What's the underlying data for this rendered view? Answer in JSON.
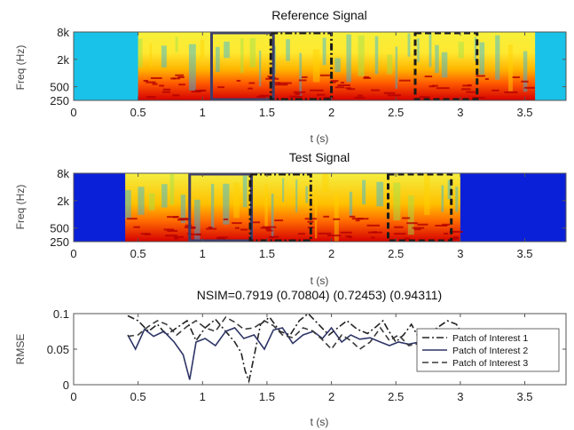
{
  "chart_data": [
    {
      "type": "heatmap",
      "title": "Reference Signal",
      "xlabel": "t (s)",
      "ylabel": "Freq (Hz)",
      "xlim": [
        0,
        3.82
      ],
      "xticks": [
        0,
        0.5,
        1,
        1.5,
        2,
        2.5,
        3,
        3.5
      ],
      "xtick_labels": [
        "0",
        "0.5",
        "1",
        "1.5",
        "2",
        "2.5",
        "3",
        "3.5"
      ],
      "yticks": [
        8000,
        2000,
        500,
        250
      ],
      "ytick_labels": [
        "8k",
        "2k",
        "500",
        "250"
      ],
      "yscale": "log",
      "ylim": [
        250,
        8000
      ],
      "colormap": "jet",
      "speech_segments": [
        [
          0.5,
          3.58
        ]
      ],
      "silence_color": "#19c2e8",
      "patches": [
        {
          "patch": 2,
          "t0": 1.07,
          "t1": 1.55,
          "style": "solid"
        },
        {
          "patch": 1,
          "t0": 1.53,
          "t1": 2.0,
          "style": "dash-dot"
        },
        {
          "patch": 3,
          "t0": 2.65,
          "t1": 3.13,
          "style": "dashed"
        }
      ]
    },
    {
      "type": "heatmap",
      "title": "Test Signal",
      "xlabel": "t (s)",
      "ylabel": "Freq (Hz)",
      "xlim": [
        0,
        3.82
      ],
      "xticks": [
        0,
        0.5,
        1,
        1.5,
        2,
        2.5,
        3,
        3.5
      ],
      "xtick_labels": [
        "0",
        "0.5",
        "1",
        "1.5",
        "2",
        "2.5",
        "3",
        "3.5"
      ],
      "yticks": [
        8000,
        2000,
        500,
        250
      ],
      "ytick_labels": [
        "8k",
        "2k",
        "500",
        "250"
      ],
      "yscale": "log",
      "ylim": [
        250,
        8000
      ],
      "colormap": "jet",
      "speech_segments": [
        [
          0.4,
          3.0
        ]
      ],
      "silence_color": "#0a20d8",
      "patches": [
        {
          "patch": 2,
          "t0": 0.9,
          "t1": 1.38,
          "style": "solid"
        },
        {
          "patch": 1,
          "t0": 1.37,
          "t1": 1.84,
          "style": "dash-dot"
        },
        {
          "patch": 3,
          "t0": 2.44,
          "t1": 2.93,
          "style": "dashed"
        }
      ]
    },
    {
      "type": "line",
      "title": "NSIM=0.7919 (0.70804) (0.72453) (0.94311)",
      "xlabel": "t (s)",
      "ylabel": "RMSE",
      "xlim": [
        0,
        3.82
      ],
      "ylim": [
        0,
        0.1
      ],
      "xticks": [
        0,
        0.5,
        1,
        1.5,
        2,
        2.5,
        3,
        3.5
      ],
      "xtick_labels": [
        "0",
        "0.5",
        "1",
        "1.5",
        "2",
        "2.5",
        "3",
        "3.5"
      ],
      "yticks": [
        0,
        0.05,
        0.1
      ],
      "ytick_labels": [
        "0",
        "0.05",
        "0.1"
      ],
      "legend": "right",
      "series": [
        {
          "name": "Patch of Interest 1",
          "style": "dash-dot",
          "color": "#222222",
          "x": [
            0.42,
            0.5,
            0.58,
            0.65,
            0.72,
            0.8,
            0.88,
            0.95,
            1.02,
            1.1,
            1.18,
            1.25,
            1.3,
            1.33,
            1.36,
            1.4,
            1.45,
            1.52,
            1.6,
            1.68,
            1.75,
            1.82,
            1.9,
            1.98,
            2.05,
            2.12,
            2.2,
            2.28,
            2.35,
            2.4,
            2.44,
            2.5,
            2.56,
            2.62,
            2.68,
            2.75,
            2.82,
            2.9,
            2.97,
            3.05,
            3.12,
            3.2,
            3.27,
            3.35,
            3.42,
            3.5,
            3.55
          ],
          "y": [
            0.097,
            0.09,
            0.075,
            0.085,
            0.07,
            0.08,
            0.09,
            0.062,
            0.08,
            0.092,
            0.075,
            0.06,
            0.045,
            0.02,
            0.005,
            0.04,
            0.085,
            0.095,
            0.075,
            0.07,
            0.09,
            0.1,
            0.085,
            0.07,
            0.08,
            0.09,
            0.078,
            0.072,
            0.082,
            0.09,
            0.077,
            0.06,
            0.07,
            0.085,
            0.065,
            0.07,
            0.08,
            0.09,
            0.085,
            0.06,
            0.048,
            0.057,
            0.07,
            0.066,
            0.075,
            0.065,
            0.072
          ]
        },
        {
          "name": "Patch of Interest 2",
          "style": "solid",
          "color": "#2e3566",
          "x": [
            0.42,
            0.48,
            0.55,
            0.62,
            0.7,
            0.78,
            0.85,
            0.9,
            0.95,
            1.02,
            1.1,
            1.18,
            1.25,
            1.32,
            1.4,
            1.48,
            1.55,
            1.62,
            1.7,
            1.78,
            1.86,
            1.93,
            2.0,
            2.08,
            2.15,
            2.22,
            2.3,
            2.38,
            2.45,
            2.52,
            2.6,
            2.68
          ],
          "y": [
            0.07,
            0.05,
            0.078,
            0.068,
            0.075,
            0.06,
            0.042,
            0.007,
            0.06,
            0.065,
            0.055,
            0.075,
            0.08,
            0.065,
            0.07,
            0.05,
            0.077,
            0.08,
            0.058,
            0.07,
            0.075,
            0.065,
            0.08,
            0.06,
            0.07,
            0.064,
            0.066,
            0.06,
            0.055,
            0.06,
            0.057,
            0.06
          ]
        },
        {
          "name": "Patch of Interest 3",
          "style": "dashed",
          "color": "#3a3a3a",
          "x": [
            0.42,
            0.5,
            0.58,
            0.65,
            0.72,
            0.8,
            0.88,
            0.95,
            1.02,
            1.1,
            1.18,
            1.25,
            1.32,
            1.4,
            1.48,
            1.55,
            1.62,
            1.7,
            1.78,
            1.85,
            1.92,
            2.0,
            2.08,
            2.15,
            2.22,
            2.3,
            2.38,
            2.45,
            2.52,
            2.6,
            2.68
          ],
          "y": [
            0.068,
            0.07,
            0.082,
            0.09,
            0.085,
            0.07,
            0.082,
            0.09,
            0.08,
            0.075,
            0.095,
            0.088,
            0.078,
            0.08,
            0.09,
            0.083,
            0.07,
            0.066,
            0.08,
            0.076,
            0.065,
            0.05,
            0.07,
            0.062,
            0.05,
            0.06,
            0.08,
            0.062,
            0.07,
            0.055,
            0.058
          ]
        }
      ]
    }
  ]
}
